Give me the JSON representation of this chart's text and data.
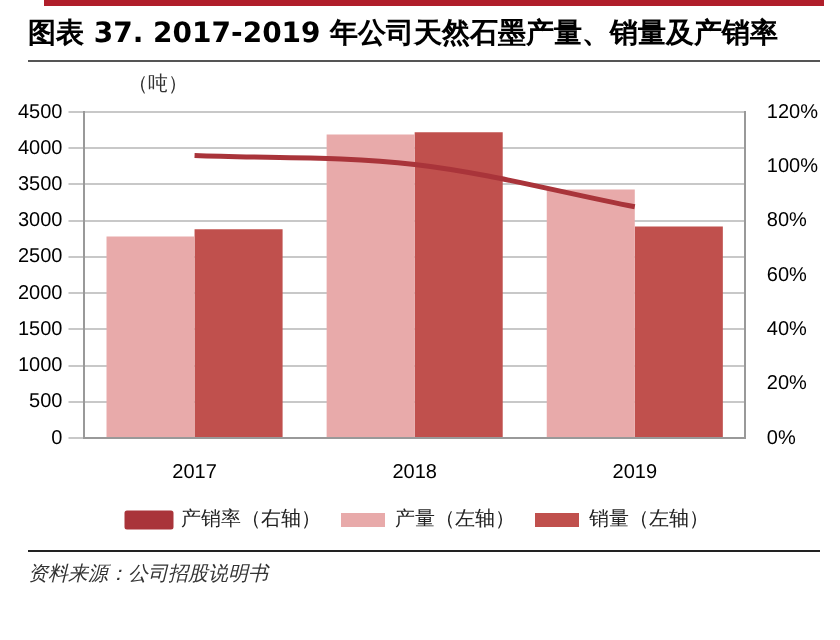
{
  "chart_data": {
    "type": "bar",
    "title": "图表 37. 2017-2019 年公司天然石墨产量、销量及产销率",
    "ylabel": "（吨）",
    "categories": [
      "2017",
      "2018",
      "2019"
    ],
    "series": [
      {
        "name": "产量（左轴）",
        "color": "#e8aaaa",
        "values": [
          2780,
          4190,
          3430
        ]
      },
      {
        "name": "销量（左轴）",
        "color": "#c0504d",
        "values": [
          2880,
          4220,
          2920
        ]
      },
      {
        "name": "产销率（右轴）",
        "type": "line",
        "axis": "y2",
        "color": "#a9343a",
        "values": [
          104,
          100.7,
          85.1
        ]
      }
    ],
    "ylim": [
      0,
      4500
    ],
    "yticks": [
      0,
      500,
      1000,
      1500,
      2000,
      2500,
      3000,
      3500,
      4000,
      4500
    ],
    "y2lim": [
      0,
      120
    ],
    "y2ticks": [
      {
        "value": 0,
        "label": "0%"
      },
      {
        "value": 20,
        "label": "20%"
      },
      {
        "value": 40,
        "label": "40%"
      },
      {
        "value": 60,
        "label": "60%"
      },
      {
        "value": 80,
        "label": "80%"
      },
      {
        "value": 100,
        "label": "100%"
      },
      {
        "value": 120,
        "label": "120%"
      }
    ],
    "grid": "y",
    "legend": "bottom",
    "marker": "none",
    "annotations": [
      "资料来源：公司招股说明书"
    ]
  }
}
